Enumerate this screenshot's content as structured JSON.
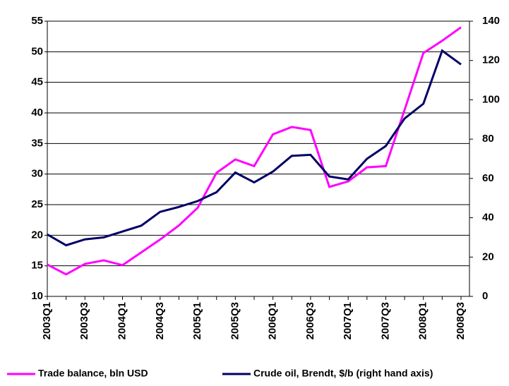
{
  "chart_data": {
    "type": "line",
    "categories": [
      "2003Q1",
      null,
      "2003Q3",
      null,
      "2004Q1",
      null,
      "2004Q3",
      null,
      "2005Q1",
      null,
      "2005Q3",
      null,
      "2006Q1",
      null,
      "2006Q3",
      null,
      "2007Q1",
      null,
      "2007Q3",
      null,
      "2008Q1",
      null,
      "2008Q3"
    ],
    "series": [
      {
        "name": "Trade balance, bln USD",
        "color": "#ff00ff",
        "values": [
          15.2,
          13.6,
          15.3,
          15.9,
          15.1,
          17.2,
          19.3,
          21.6,
          24.5,
          30.2,
          32.4,
          31.3,
          36.5,
          37.7,
          37.2,
          27.9,
          28.8,
          31.1,
          31.3,
          40.5,
          49.8,
          51.8,
          54.0
        ]
      },
      {
        "name": "Crude oil, Brendt, $/b (right hand axis)",
        "color": "#000066",
        "axis": "y2",
        "values": [
          31.5,
          26,
          29,
          30,
          33,
          36,
          43,
          45.5,
          48.5,
          53,
          63,
          58,
          63.5,
          71.5,
          72,
          61,
          59.5,
          70,
          76.5,
          90.5,
          98,
          125,
          118
        ]
      }
    ],
    "ylim": [
      10,
      55
    ],
    "yticks": [
      10,
      15,
      20,
      25,
      30,
      35,
      40,
      45,
      50,
      55
    ],
    "y2lim": [
      0,
      140
    ],
    "y2ticks": [
      0,
      20,
      40,
      60,
      80,
      100,
      120,
      140
    ],
    "grid": true,
    "legend": "bottom"
  }
}
